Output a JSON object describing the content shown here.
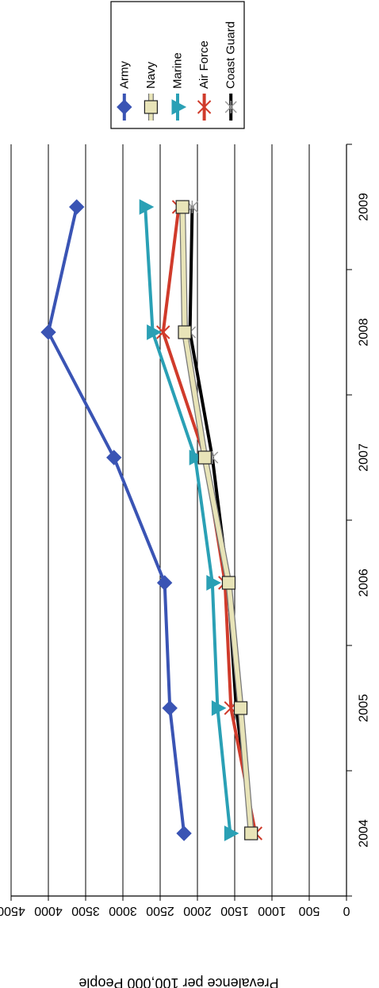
{
  "chart_data": {
    "type": "line",
    "orientation": "rotated-180",
    "x": [
      "2004",
      "2005",
      "2006",
      "2007",
      "2008",
      "2009"
    ],
    "ylabel": "Prevalence per 100,000 People",
    "ylim": [
      0,
      4500
    ],
    "yticks": [
      0,
      500,
      1000,
      1500,
      2000,
      2500,
      3000,
      3500,
      4000,
      4500
    ],
    "grid": true,
    "legend_position": "top",
    "series": [
      {
        "name": "Army",
        "color": "#3a54b4",
        "marker": "diamond",
        "values": [
          2180,
          2370,
          2440,
          3120,
          4000,
          3620
        ]
      },
      {
        "name": "Navy",
        "color": "#e8e4b8",
        "marker": "square",
        "values": [
          1280,
          1420,
          1580,
          1900,
          2170,
          2200
        ]
      },
      {
        "name": "Marine",
        "color": "#2aa0b5",
        "marker": "triangle",
        "values": [
          1560,
          1730,
          1800,
          2030,
          2600,
          2700
        ]
      },
      {
        "name": "Air Force",
        "color": "#d03b2b",
        "marker": "x",
        "values": [
          1220,
          1550,
          1630,
          1900,
          2460,
          2250
        ]
      },
      {
        "name": "Coast Guard",
        "color": "#000000",
        "marker": "asterisk",
        "values": [
          1260,
          1480,
          1590,
          1800,
          2100,
          2070
        ]
      }
    ]
  }
}
